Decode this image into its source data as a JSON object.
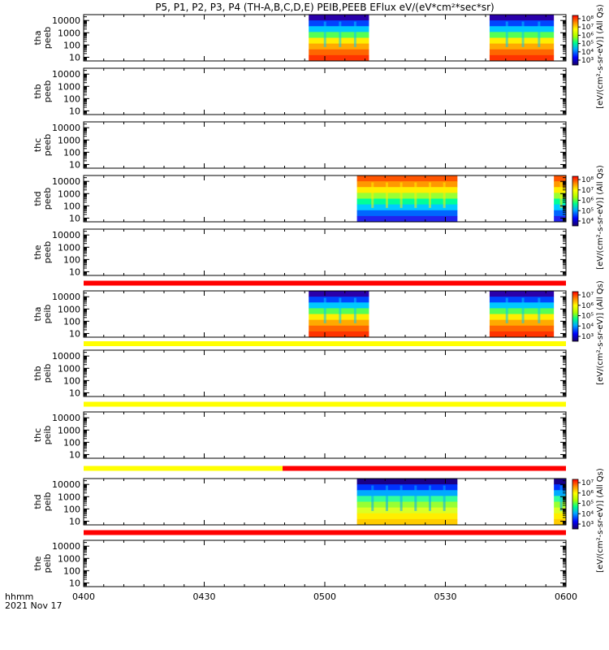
{
  "title": "P5, P1, P2, P3, P4 (TH-A,B,C,D,E) PEIB,PEEB EFlux eV/(eV*cm²*sec*sr)",
  "chart_data": {
    "type": "heatmap",
    "x_tick_labels": [
      "0400",
      "0430",
      "0500",
      "0530",
      "0600"
    ],
    "x_ticks_minutes": [
      0,
      30,
      60,
      90,
      120
    ],
    "xlim_minutes": [
      0,
      120
    ],
    "x_footer": [
      "hhmm",
      "2021 Nov 17"
    ],
    "y_scale": "log",
    "y_tick_labels": [
      "10",
      "100",
      "1000",
      "10000"
    ],
    "y_ticks": [
      10,
      100,
      1000,
      10000
    ],
    "ylim": [
      5,
      30000
    ],
    "panels": [
      {
        "probe_label": "tha",
        "product_label": "peeb",
        "coverage": [
          [
            56,
            71
          ],
          [
            101,
            117
          ]
        ],
        "palette": "warm"
      },
      {
        "probe_label": "thb",
        "product_label": "peeb",
        "coverage": []
      },
      {
        "probe_label": "thc",
        "product_label": "peeb",
        "coverage": []
      },
      {
        "probe_label": "thd",
        "product_label": "peeb",
        "coverage": [
          [
            68,
            93
          ],
          [
            117,
            120
          ]
        ],
        "palette": "mixed"
      },
      {
        "probe_label": "the",
        "product_label": "peeb",
        "coverage": []
      },
      {
        "probe_label": "tha",
        "product_label": "peib",
        "coverage": [
          [
            56,
            71
          ],
          [
            101,
            117
          ]
        ],
        "palette": "warm"
      },
      {
        "probe_label": "thb",
        "product_label": "peib",
        "coverage": []
      },
      {
        "probe_label": "thc",
        "product_label": "peib",
        "coverage": []
      },
      {
        "probe_label": "thd",
        "product_label": "peib",
        "coverage": [
          [
            68,
            93
          ],
          [
            117,
            120
          ]
        ],
        "palette": "green"
      },
      {
        "probe_label": "the",
        "product_label": "peib",
        "coverage": []
      }
    ],
    "status_bars": [
      {
        "after_panel": 4,
        "segments": [
          {
            "start": 0,
            "end": 120,
            "color": "#ff0000"
          }
        ]
      },
      {
        "after_panel": 5,
        "segments": [
          {
            "start": 0,
            "end": 120,
            "color": "#ffff00"
          }
        ]
      },
      {
        "after_panel": 6,
        "segments": [
          {
            "start": 0,
            "end": 120,
            "color": "#ffff00"
          }
        ]
      },
      {
        "after_panel": 7,
        "segments": [
          {
            "start": 0,
            "end": 49.5,
            "color": "#ffff00"
          },
          {
            "start": 49.5,
            "end": 120,
            "color": "#ff0000"
          }
        ]
      },
      {
        "after_panel": 8,
        "segments": [
          {
            "start": 0,
            "end": 120,
            "color": "#ff0000"
          }
        ]
      }
    ],
    "colorbars": [
      {
        "label": "[eV/(cm²-s-sr-eV)] (All Qs)",
        "tick_labels": [
          "10³",
          "10⁴",
          "10⁵",
          "10⁶",
          "10⁷",
          "10⁸"
        ]
      },
      {
        "label": "[eV/(cm²-s-sr-eV)] (All Qs)",
        "tick_labels": [
          "10⁴",
          "10⁵",
          "10⁶",
          "10⁷",
          "10⁸"
        ]
      },
      {
        "label": "[eV/(cm²-s-sr-eV)] (All Qs)",
        "tick_labels": [
          "10³",
          "10⁴",
          "10⁵",
          "10⁶",
          "10⁷"
        ]
      },
      {
        "label": "[eV/(cm²-s-sr-eV)] (All Qs)",
        "tick_labels": [
          "10³",
          "10⁴",
          "10⁵",
          "10⁶",
          "10⁷"
        ]
      }
    ]
  }
}
